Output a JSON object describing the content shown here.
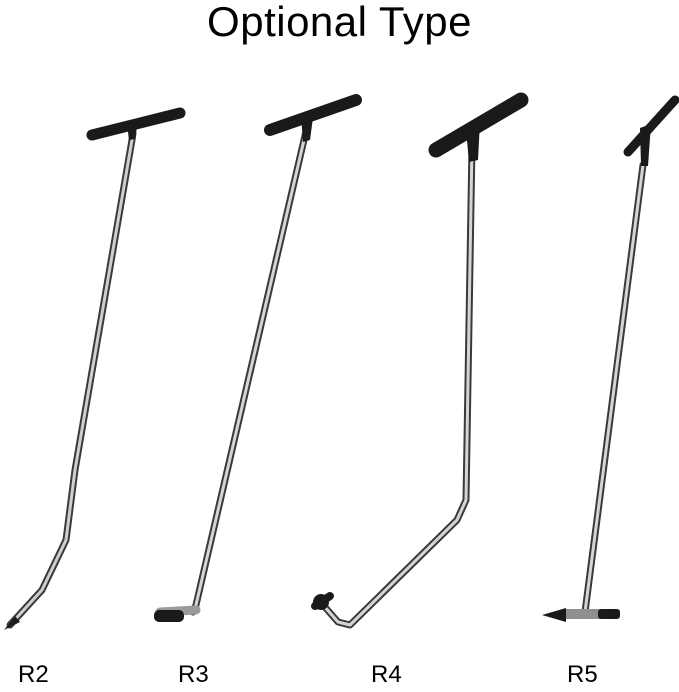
{
  "title": "Optional Type",
  "tools": [
    {
      "label": "R2"
    },
    {
      "label": "R3"
    },
    {
      "label": "R4"
    },
    {
      "label": "R5"
    }
  ]
}
